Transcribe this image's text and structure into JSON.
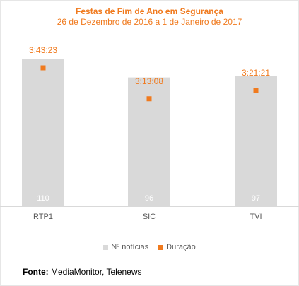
{
  "chart_data": {
    "type": "bar",
    "title": "Festas de Fim de Ano em Segurança",
    "subtitle": "26 de Dezembro de 2016 a 1 de Janeiro de 2017",
    "categories": [
      "RTP1",
      "SIC",
      "TVI"
    ],
    "series": [
      {
        "name": "Nº notícias",
        "type": "bar",
        "color": "#d9d9d9",
        "label_color": "#ffffff",
        "values": [
          110,
          96,
          97
        ],
        "labels": [
          "110",
          "96",
          "97"
        ]
      },
      {
        "name": "Duração",
        "type": "marker",
        "color": "#f07a1e",
        "values_seconds": [
          13403,
          11588,
          12081
        ],
        "labels": [
          "3:43:23",
          "3:13:08",
          "3:21:21"
        ]
      }
    ],
    "ylim": [
      0,
      110
    ],
    "grid": false,
    "legend_position": "bottom"
  },
  "legend": {
    "items": [
      {
        "label": "Nº notícias",
        "color": "#d9d9d9"
      },
      {
        "label": "Duração",
        "color": "#f07a1e"
      }
    ]
  },
  "source": {
    "prefix": "Fonte:",
    "text": " MediaMonitor, Telenews"
  }
}
